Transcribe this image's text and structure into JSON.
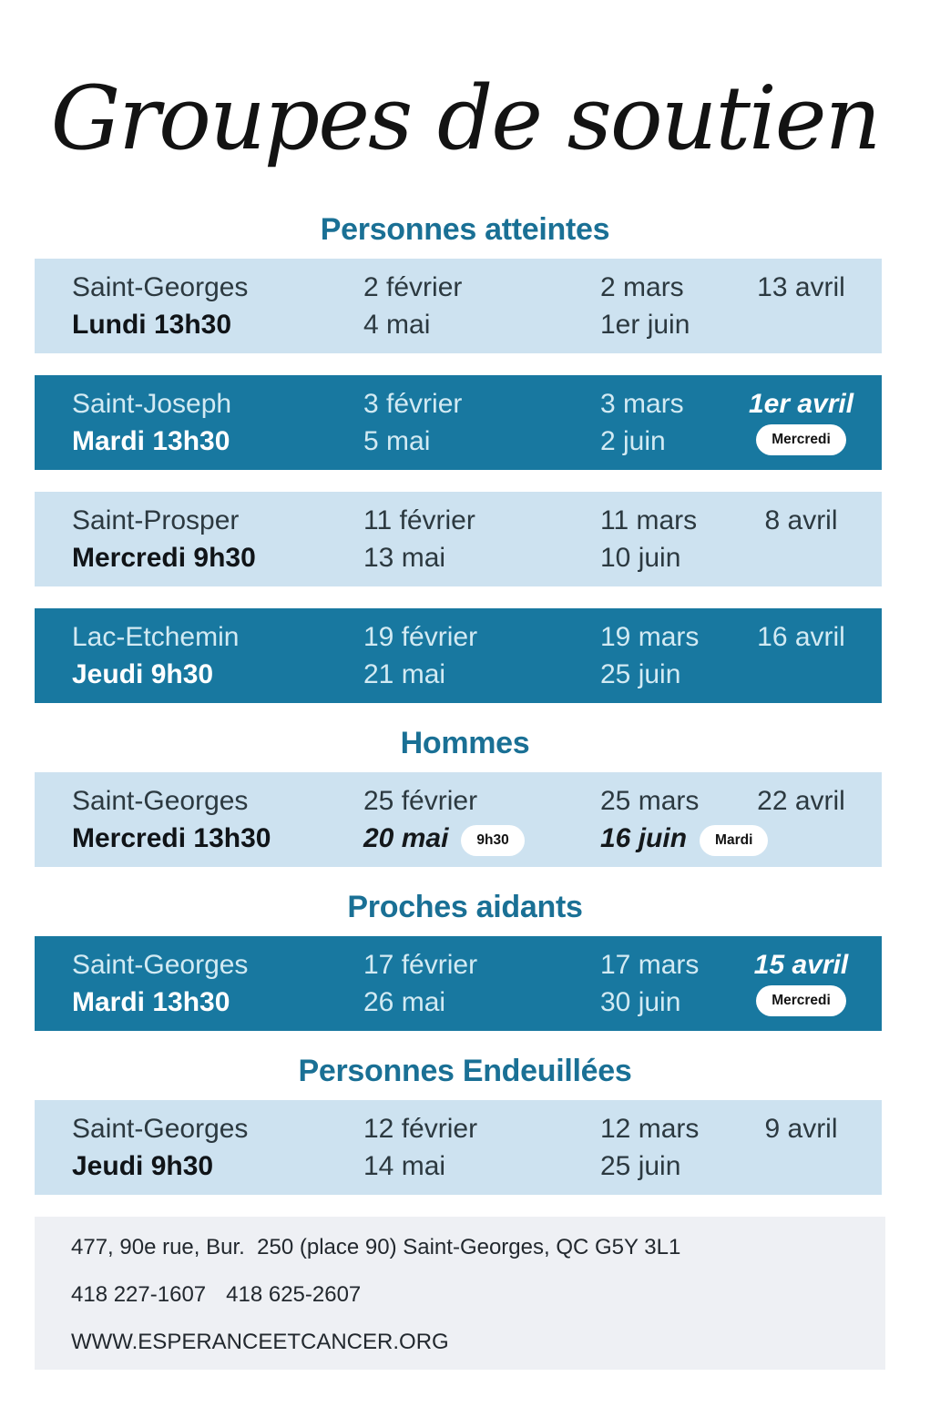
{
  "title": "Groupes de soutien",
  "colors": {
    "heading_teal": "#1a7095",
    "row_dark_teal": "#1878a0",
    "row_light_blue": "#cde2f0",
    "badge_bg": "#ffffff",
    "footer_bg": "#eef0f4"
  },
  "sections": [
    {
      "title": "Personnes atteintes",
      "rows": [
        {
          "location": "Saint-Georges",
          "schedule": "Lundi 13h30",
          "col2": {
            "line1": "2 février",
            "line2": "4 mai"
          },
          "col3": {
            "line1": "2 mars",
            "line2": "1er juin"
          },
          "col4": {
            "line1": "13 avril"
          }
        },
        {
          "location": "Saint-Joseph",
          "schedule": "Mardi 13h30",
          "col2": {
            "line1": "3 février",
            "line2": "5 mai"
          },
          "col3": {
            "line1": "3 mars",
            "line2": "2 juin"
          },
          "col4": {
            "line1": "1er avril",
            "badge": "Mercredi"
          }
        },
        {
          "location": "Saint-Prosper",
          "schedule": "Mercredi 9h30",
          "col2": {
            "line1": "11 février",
            "line2": "13 mai"
          },
          "col3": {
            "line1": "11 mars",
            "line2": "10 juin"
          },
          "col4": {
            "line1": "8 avril"
          }
        },
        {
          "location": "Lac-Etchemin",
          "schedule": "Jeudi 9h30",
          "col2": {
            "line1": "19 février",
            "line2": "21 mai"
          },
          "col3": {
            "line1": "19 mars",
            "line2": "25 juin"
          },
          "col4": {
            "line1": "16 avril"
          }
        }
      ]
    },
    {
      "title": "Hommes",
      "rows": [
        {
          "location": "Saint-Georges",
          "schedule": "Mercredi 13h30",
          "col2": {
            "line1": "25 février",
            "line2": "20 mai",
            "line2_badge": "9h30"
          },
          "col3": {
            "line1": "25 mars",
            "line2": "16 juin",
            "line2_badge": "Mardi"
          },
          "col4": {
            "line1": "22 avril"
          }
        }
      ]
    },
    {
      "title": "Proches aidants",
      "rows": [
        {
          "location": "Saint-Georges",
          "schedule": "Mardi 13h30",
          "col2": {
            "line1": "17 février",
            "line2": "26 mai"
          },
          "col3": {
            "line1": "17 mars",
            "line2": "30 juin"
          },
          "col4": {
            "line1": "15 avril",
            "badge": "Mercredi"
          }
        }
      ]
    },
    {
      "title": "Personnes Endeuillées",
      "rows": [
        {
          "location": "Saint-Georges",
          "schedule": "Jeudi 9h30",
          "col2": {
            "line1": "12 février",
            "line2": "14 mai"
          },
          "col3": {
            "line1": "12 mars",
            "line2": "25 juin"
          },
          "col4": {
            "line1": "9 avril"
          }
        }
      ]
    }
  ],
  "footer": {
    "address": "477, 90e rue, Bur.  250 (place 90) Saint-Georges, QC G5Y 3L1",
    "phone1": "418 227-1607",
    "phone2": "418 625-2607",
    "website": "WWW.ESPERANCEETCANCER.ORG"
  }
}
